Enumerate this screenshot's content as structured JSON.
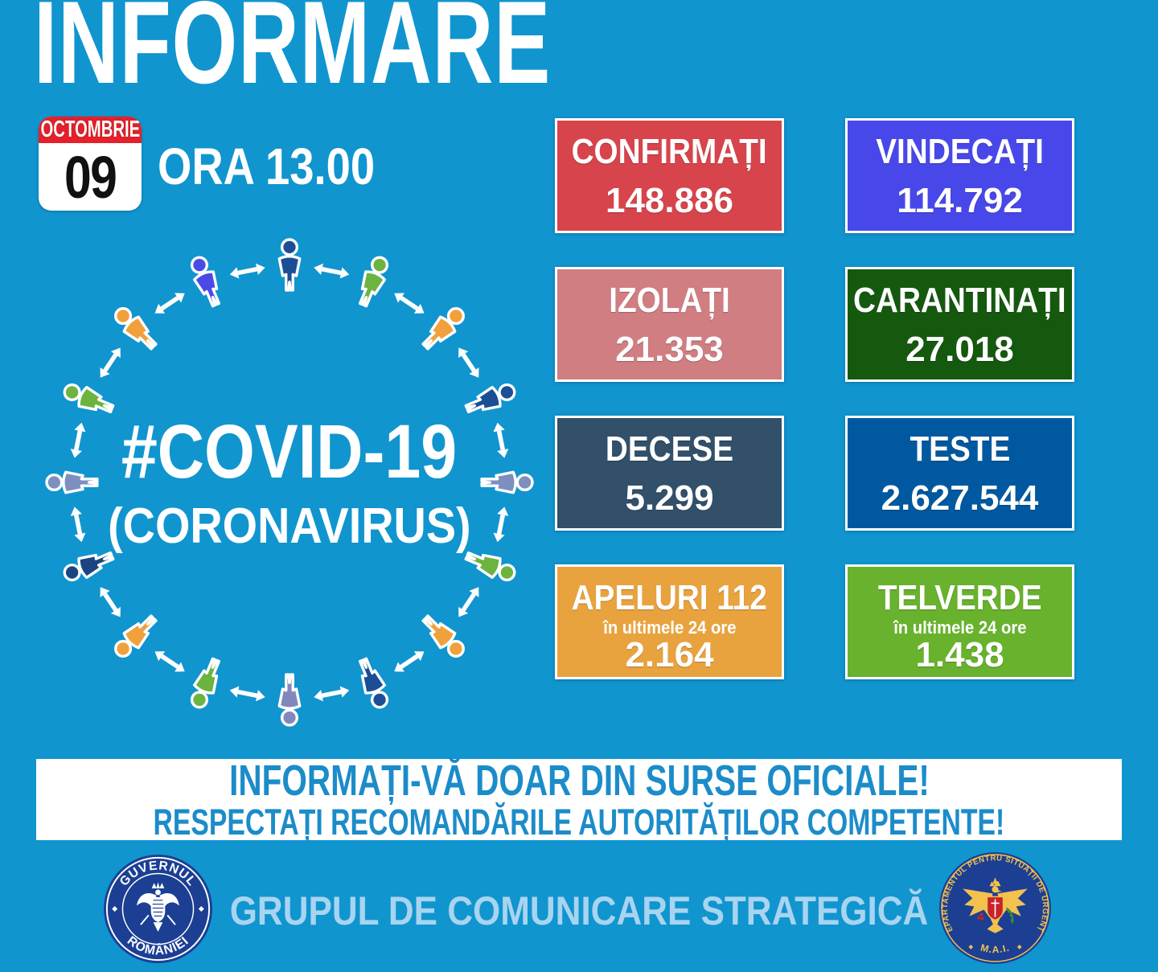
{
  "title": "INFORMARE",
  "date": {
    "month": "OCTOMBRIE",
    "day": "09",
    "time_label": "ORA 13.00"
  },
  "center": {
    "hashtag": "#COVID-19",
    "subtitle": "(CORONAVIRUS)",
    "arrow_color": "#FFFFFF",
    "person_colors": [
      "#1C4E96",
      "#6CB33F",
      "#F0A13C",
      "#1C4E96",
      "#7D8FBF",
      "#6CB33F",
      "#F0A13C",
      "#1C4E96",
      "#8287BD",
      "#6CB33F",
      "#F0A13C",
      "#1B4580",
      "#7D8FBF",
      "#6CB33F",
      "#F0A13C",
      "#4A4AE8"
    ]
  },
  "stats": [
    {
      "id": "confirmati",
      "label": "CONFIRMAȚI",
      "sub": "",
      "value": "148.886",
      "color": "#D8444C"
    },
    {
      "id": "vindecati",
      "label": "VINDECAȚI",
      "sub": "",
      "value": "114.792",
      "color": "#4848EA"
    },
    {
      "id": "izolati",
      "label": "IZOLAȚI",
      "sub": "",
      "value": "21.353",
      "color": "#D07E82"
    },
    {
      "id": "carantinati",
      "label": "CARANTINAȚI",
      "sub": "",
      "value": "27.018",
      "color": "#15590F"
    },
    {
      "id": "decese",
      "label": "DECESE",
      "sub": "",
      "value": "5.299",
      "color": "#32506A"
    },
    {
      "id": "teste",
      "label": "TESTE",
      "sub": "",
      "value": "2.627.544",
      "color": "#0059A0"
    },
    {
      "id": "apeluri-112",
      "label": "APELURI 112",
      "sub": "în ultimele 24 ore",
      "value": "2.164",
      "color": "#E9A33E"
    },
    {
      "id": "telverde",
      "label": "TELVERDE",
      "sub": "în ultimele 24 ore",
      "value": "1.438",
      "color": "#68B22D"
    }
  ],
  "banner": {
    "line1": "INFORMAȚI-VĂ DOAR DIN SURSE OFICIALE!",
    "line2": "RESPECTAȚI RECOMANDĂRILE AUTORITĂȚILOR COMPETENTE!",
    "text_color": "#1C8CC9"
  },
  "footer": {
    "label": "GRUPUL DE COMUNICARE STRATEGICĂ",
    "left_seal": {
      "top_text": "GUVERNUL",
      "bottom_text": "ROMÂNIEI"
    },
    "right_seal": {
      "around_text": "DEPARTAMENTUL  PENTRU  SITUAȚII  DE  URGENȚA",
      "bottom_text": "M.A.I."
    }
  },
  "colors": {
    "background": "#1095CF",
    "banner_bg": "#FFFFFF",
    "calendar_header": "#E5202A",
    "footer_label": "#A8D4F0",
    "seal_navy": "#1C3F94",
    "seal_gold": "#F2C14E"
  }
}
